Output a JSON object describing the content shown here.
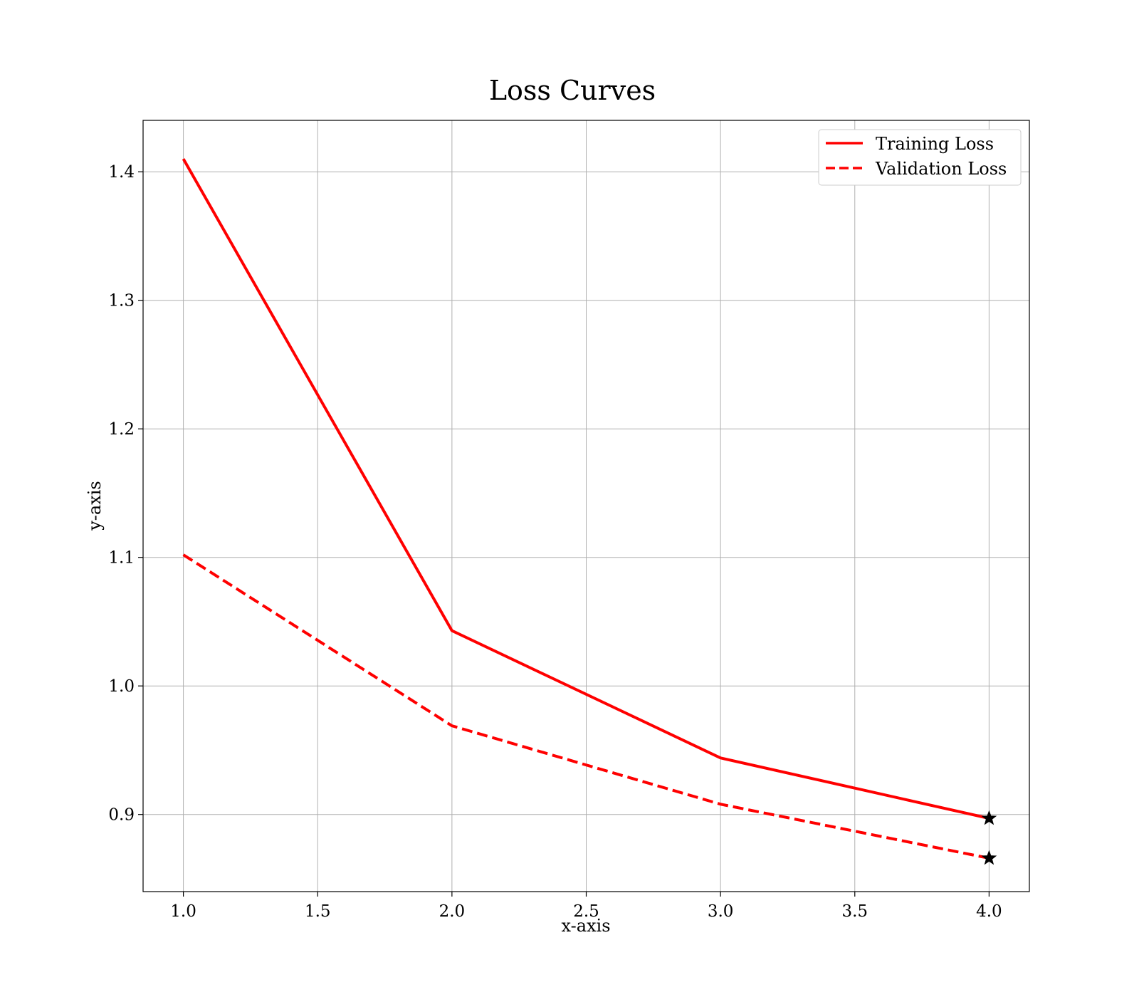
{
  "chart_data": {
    "type": "line",
    "title": "Loss Curves",
    "xlabel": "x-axis",
    "ylabel": "y-axis",
    "xlim": [
      0.85,
      4.15
    ],
    "ylim": [
      0.84,
      1.44
    ],
    "xticks": [
      1.0,
      1.5,
      2.0,
      2.5,
      3.0,
      3.5,
      4.0
    ],
    "xtick_labels": [
      "1.0",
      "1.5",
      "2.0",
      "2.5",
      "3.0",
      "3.5",
      "4.0"
    ],
    "yticks": [
      0.9,
      1.0,
      1.1,
      1.2,
      1.3,
      1.4
    ],
    "ytick_labels": [
      "0.9",
      "1.0",
      "1.1",
      "1.2",
      "1.3",
      "1.4"
    ],
    "grid": true,
    "legend_position": "top-right",
    "x": [
      1,
      2,
      3,
      4
    ],
    "series": [
      {
        "name": "Training Loss",
        "values": [
          1.41,
          1.043,
          0.944,
          0.897
        ],
        "color": "#ff0000",
        "style": "solid",
        "final_marker": "star"
      },
      {
        "name": "Validation Loss",
        "values": [
          1.102,
          0.969,
          0.908,
          0.866
        ],
        "color": "#ff0000",
        "style": "dashed",
        "final_marker": "star"
      }
    ]
  }
}
